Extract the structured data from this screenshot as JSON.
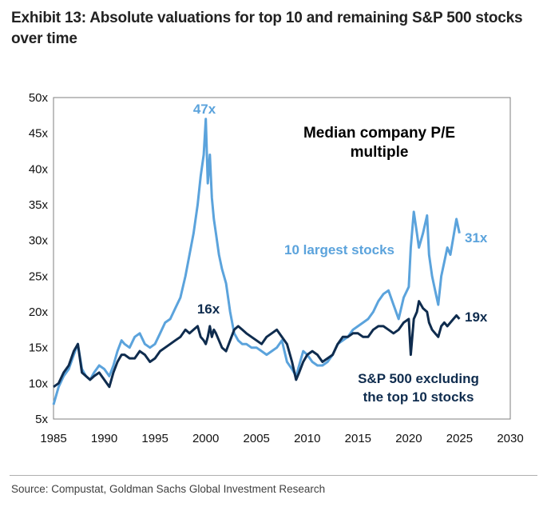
{
  "header": {
    "title": "Exhibit 13: Absolute valuations for top 10 and remaining S&P 500 stocks over time"
  },
  "footer": {
    "source": "Source: Compustat, Goldman Sachs Global Investment Research"
  },
  "chart_data": {
    "type": "line",
    "title": "",
    "inner_title_line1": "Median company P/E",
    "inner_title_line2": "multiple",
    "xlim": [
      1985,
      2030
    ],
    "ylim": [
      5,
      50
    ],
    "x_ticks": [
      1985,
      1990,
      1995,
      2000,
      2005,
      2010,
      2015,
      2020,
      2025,
      2030
    ],
    "y_ticks": [
      5,
      10,
      15,
      20,
      25,
      30,
      35,
      40,
      45,
      50
    ],
    "y_tick_labels": [
      "5x",
      "10x",
      "15x",
      "20x",
      "25x",
      "30x",
      "35x",
      "40x",
      "45x",
      "50x"
    ],
    "grid": false,
    "annotations": {
      "top10_peak": "47x",
      "top10_end": "31x",
      "rest_peak": "16x",
      "rest_end": "19x"
    },
    "series": [
      {
        "name": "10 largest stocks",
        "color": "#5ba3dc",
        "x": [
          1985.0,
          1985.5,
          1986.0,
          1986.5,
          1987.0,
          1987.4,
          1987.8,
          1988.2,
          1988.6,
          1989.0,
          1989.5,
          1990.0,
          1990.5,
          1990.9,
          1991.3,
          1991.7,
          1992.0,
          1992.5,
          1993.0,
          1993.5,
          1994.0,
          1994.5,
          1995.0,
          1995.5,
          1996.0,
          1996.5,
          1997.0,
          1997.5,
          1998.0,
          1998.4,
          1998.8,
          1999.2,
          1999.5,
          1999.8,
          2000.0,
          2000.2,
          2000.4,
          2000.6,
          2000.8,
          2001.0,
          2001.3,
          2001.6,
          2002.0,
          2002.4,
          2002.8,
          2003.2,
          2003.6,
          2004.0,
          2004.5,
          2005.0,
          2005.5,
          2006.0,
          2006.5,
          2007.0,
          2007.5,
          2008.0,
          2008.5,
          2008.9,
          2009.2,
          2009.6,
          2010.0,
          2010.5,
          2011.0,
          2011.5,
          2012.0,
          2012.5,
          2013.0,
          2013.5,
          2014.0,
          2014.5,
          2015.0,
          2015.5,
          2016.0,
          2016.5,
          2017.0,
          2017.5,
          2018.0,
          2018.5,
          2019.0,
          2019.5,
          2020.0,
          2020.2,
          2020.5,
          2020.8,
          2021.0,
          2021.4,
          2021.8,
          2022.0,
          2022.3,
          2022.6,
          2022.9,
          2023.2,
          2023.5,
          2023.8,
          2024.1,
          2024.4,
          2024.7,
          2025.0
        ],
        "y": [
          7.0,
          9.5,
          11.0,
          12.0,
          14.0,
          15.5,
          12.0,
          11.0,
          10.5,
          11.5,
          12.5,
          12.0,
          11.0,
          12.5,
          14.5,
          16.0,
          15.5,
          15.0,
          16.5,
          17.0,
          15.5,
          15.0,
          15.5,
          17.0,
          18.5,
          19.0,
          20.5,
          22.0,
          25.0,
          28.0,
          31.0,
          35.0,
          39.0,
          42.0,
          47.0,
          38.0,
          42.0,
          36.0,
          33.0,
          31.0,
          28.0,
          26.0,
          24.0,
          20.0,
          17.0,
          16.0,
          15.5,
          15.5,
          15.0,
          15.0,
          14.5,
          14.0,
          14.5,
          15.0,
          16.0,
          13.0,
          12.0,
          11.0,
          12.5,
          14.5,
          14.0,
          13.0,
          12.5,
          12.5,
          13.0,
          14.0,
          15.5,
          16.0,
          16.5,
          17.5,
          18.0,
          18.5,
          19.0,
          20.0,
          21.5,
          22.5,
          23.0,
          21.0,
          19.0,
          22.0,
          23.5,
          29.0,
          34.0,
          31.0,
          29.0,
          31.0,
          33.5,
          28.0,
          25.0,
          23.0,
          21.0,
          25.0,
          27.0,
          29.0,
          28.0,
          30.5,
          33.0,
          31.0
        ]
      },
      {
        "name": "S&P 500 excluding the top 10 stocks",
        "color": "#0f2c4e",
        "x": [
          1985.0,
          1985.5,
          1986.0,
          1986.5,
          1987.0,
          1987.4,
          1987.8,
          1988.2,
          1988.6,
          1989.0,
          1989.5,
          1990.0,
          1990.5,
          1990.9,
          1991.3,
          1991.7,
          1992.0,
          1992.5,
          1993.0,
          1993.5,
          1994.0,
          1994.5,
          1995.0,
          1995.5,
          1996.0,
          1996.5,
          1997.0,
          1997.5,
          1998.0,
          1998.4,
          1998.8,
          1999.2,
          1999.5,
          1999.8,
          2000.0,
          2000.2,
          2000.4,
          2000.6,
          2000.8,
          2001.0,
          2001.3,
          2001.6,
          2002.0,
          2002.4,
          2002.8,
          2003.2,
          2003.6,
          2004.0,
          2004.5,
          2005.0,
          2005.5,
          2006.0,
          2006.5,
          2007.0,
          2007.5,
          2008.0,
          2008.5,
          2008.9,
          2009.2,
          2009.6,
          2010.0,
          2010.5,
          2011.0,
          2011.5,
          2012.0,
          2012.5,
          2013.0,
          2013.5,
          2014.0,
          2014.5,
          2015.0,
          2015.5,
          2016.0,
          2016.5,
          2017.0,
          2017.5,
          2018.0,
          2018.5,
          2019.0,
          2019.5,
          2020.0,
          2020.2,
          2020.5,
          2020.8,
          2021.0,
          2021.4,
          2021.8,
          2022.0,
          2022.3,
          2022.6,
          2022.9,
          2023.2,
          2023.5,
          2023.8,
          2024.1,
          2024.4,
          2024.7,
          2025.0
        ],
        "y": [
          9.5,
          10.0,
          11.5,
          12.5,
          14.5,
          15.5,
          11.5,
          11.0,
          10.5,
          11.0,
          11.5,
          10.5,
          9.5,
          11.5,
          13.0,
          14.0,
          14.0,
          13.5,
          13.5,
          14.5,
          14.0,
          13.0,
          13.5,
          14.5,
          15.0,
          15.5,
          16.0,
          16.5,
          17.5,
          17.0,
          17.5,
          18.0,
          16.5,
          16.0,
          15.5,
          16.5,
          18.0,
          16.5,
          17.5,
          17.0,
          16.0,
          15.0,
          14.5,
          16.0,
          17.5,
          18.0,
          17.5,
          17.0,
          16.5,
          16.0,
          15.5,
          16.5,
          17.0,
          17.5,
          16.5,
          15.5,
          13.0,
          10.5,
          11.5,
          13.0,
          14.0,
          14.5,
          14.0,
          13.0,
          13.5,
          14.0,
          15.5,
          16.5,
          16.5,
          17.0,
          17.0,
          16.5,
          16.5,
          17.5,
          18.0,
          18.0,
          17.5,
          17.0,
          17.5,
          18.5,
          19.0,
          14.0,
          19.0,
          20.0,
          21.5,
          20.5,
          20.0,
          18.5,
          17.5,
          17.0,
          16.5,
          18.0,
          18.5,
          18.0,
          18.5,
          19.0,
          19.5,
          19.0
        ]
      }
    ]
  }
}
